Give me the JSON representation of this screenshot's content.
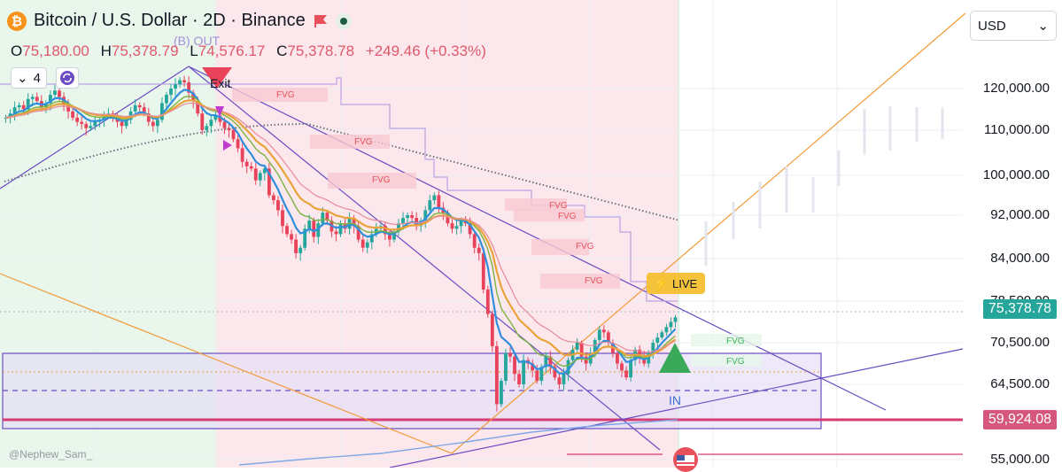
{
  "header": {
    "title": "Bitcoin / U.S. Dollar · 2D · Binance",
    "logo_letter": "₿",
    "ohlc": {
      "o_label": "O",
      "o_value": "75,180.00",
      "h_label": "H",
      "h_value": "75,378.79",
      "l_label": "L",
      "l_value": "74,576.17",
      "c_label": "C",
      "c_value": "75,378.78",
      "change": "+249.46 (+0.33%)"
    },
    "indicator_count": "4",
    "currency": "USD"
  },
  "chart_data": {
    "type": "candlestick",
    "price_axis": [
      "120,000.00",
      "110,000.00",
      "100,000.00",
      "92,000.00",
      "84,000.00",
      "78,500.00",
      "70,500.00",
      "64,500.00",
      "55,000.00"
    ],
    "price_axis_values": [
      120000,
      110000,
      100000,
      92000,
      84000,
      78500,
      70500,
      64500,
      55000
    ],
    "last_price": "75,378.78",
    "level_price": "59,924.08",
    "colors": {
      "up": "#26a69a",
      "down": "#e8435a",
      "ema_fast": "#2f8fde",
      "ema_mid": "#7cb342",
      "ema_slow": "#e8a33a",
      "trend": "#6a4cc2",
      "fib": "#f29a38",
      "level": "#d63c73"
    },
    "annotations": {
      "exit": "Exit",
      "b_out": "(B) OUT",
      "in": "IN",
      "live": "LIVE",
      "fvg": [
        "FVG",
        "FVG",
        "FVG",
        "FVG",
        "FVG",
        "FVG",
        "FVG",
        "FVG",
        "FVG"
      ]
    },
    "closes": [
      113000,
      114000,
      115500,
      116000,
      115000,
      117500,
      118000,
      117000,
      115500,
      116500,
      118500,
      119500,
      118000,
      116000,
      114500,
      113000,
      112000,
      111500,
      110500,
      111000,
      112000,
      112500,
      113500,
      114000,
      113000,
      112000,
      111000,
      112500,
      114500,
      116000,
      115500,
      114000,
      112000,
      111000,
      112500,
      116500,
      118500,
      120000,
      121000,
      122000,
      121500,
      119000,
      117000,
      114000,
      110000,
      111000,
      112500,
      113500,
      112000,
      110500,
      110000,
      108000,
      106000,
      103000,
      102000,
      101500,
      99000,
      100500,
      101500,
      96000,
      95000,
      93000,
      90000,
      88500,
      87500,
      85000,
      86000,
      89500,
      91000,
      88000,
      90500,
      92500,
      91000,
      89000,
      88500,
      90500,
      89500,
      91500,
      90000,
      87500,
      86000,
      87000,
      88500,
      89500,
      90000,
      88500,
      87500,
      89000,
      90500,
      91500,
      92000,
      91500,
      90000,
      91000,
      93000,
      95000,
      96000,
      93500,
      92500,
      90500,
      89500,
      90000,
      91000,
      90500,
      88500,
      86000,
      85000,
      80000,
      76000,
      70000,
      62000,
      65000,
      69000,
      68500,
      66000,
      64500,
      68000,
      67500,
      66500,
      65000,
      67000,
      68500,
      67000,
      65500,
      64500,
      66000,
      68000,
      69500,
      70500,
      68500,
      67500,
      69000,
      71000,
      73000,
      72500,
      70500,
      69000,
      67500,
      66500,
      65500,
      68000,
      69500,
      68500,
      67500,
      69000,
      70500,
      71500,
      72500,
      73500,
      74500,
      75378
    ]
  }
}
